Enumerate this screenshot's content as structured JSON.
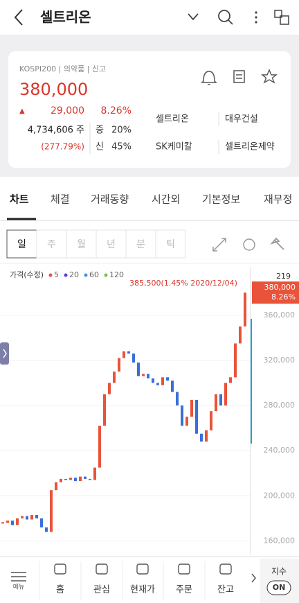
{
  "header": {
    "title": "셀트리온"
  },
  "quote": {
    "market": "KOSPI200 | 의약품 | 신고",
    "price": "380,000",
    "change_arrow": "▲",
    "change": "29,000",
    "change_rate": "8.26%",
    "volume": "4,734,606 주",
    "volume_rate": "(277.79%)",
    "margin": [
      {
        "label": "증",
        "value": "20%"
      },
      {
        "label": "신",
        "value": "45%"
      }
    ],
    "related": [
      "셀트리온",
      "대우건설",
      "SK케미칼",
      "셀트리온제약"
    ]
  },
  "tabs": [
    "차트",
    "체결",
    "거래동향",
    "시간외",
    "기본정보",
    "재무정"
  ],
  "periods": [
    "일",
    "주",
    "월",
    "년",
    "분",
    "틱"
  ],
  "chart": {
    "type": "candlestick",
    "legend_title": "가격(수정)",
    "ma": [
      {
        "name": "5",
        "color": "#e8533a"
      },
      {
        "name": "20",
        "color": "#5a3fd0"
      },
      {
        "name": "60",
        "color": "#4a90e2"
      },
      {
        "name": "120",
        "color": "#7cc04a"
      }
    ],
    "high_label": "385,500(1.45% 2020/12/04)",
    "count": "219",
    "last_label": "380,000",
    "last_rate": "8.26%",
    "up_color": "#e8533a",
    "down_color": "#3a6fd8",
    "ylim": [
      148000,
      401000
    ],
    "yticks": [
      {
        "value": 160000,
        "label": "160,000"
      },
      {
        "value": 200000,
        "label": "200,000"
      },
      {
        "value": 240000,
        "label": "240,000"
      },
      {
        "value": 280000,
        "label": "280,000"
      },
      {
        "value": 320000,
        "label": "320,000"
      },
      {
        "value": 360000,
        "label": "360,000"
      }
    ],
    "closes": [
      176000,
      178000,
      174000,
      180000,
      182000,
      179000,
      183000,
      180000,
      172000,
      168000,
      205000,
      212000,
      215000,
      214000,
      216000,
      213000,
      217000,
      215000,
      214000,
      225000,
      262000,
      290000,
      300000,
      310000,
      322000,
      328000,
      326000,
      318000,
      306000,
      308000,
      304000,
      300000,
      298000,
      305000,
      302000,
      292000,
      280000,
      262000,
      270000,
      285000,
      255000,
      248000,
      258000,
      275000,
      290000,
      280000,
      300000,
      305000,
      335000,
      350000,
      380000
    ]
  },
  "bottom_nav": [
    "메뉴",
    "홈",
    "관심",
    "현재가",
    "주문",
    "잔고"
  ],
  "index_button": {
    "label": "지수",
    "toggle": "ON"
  }
}
